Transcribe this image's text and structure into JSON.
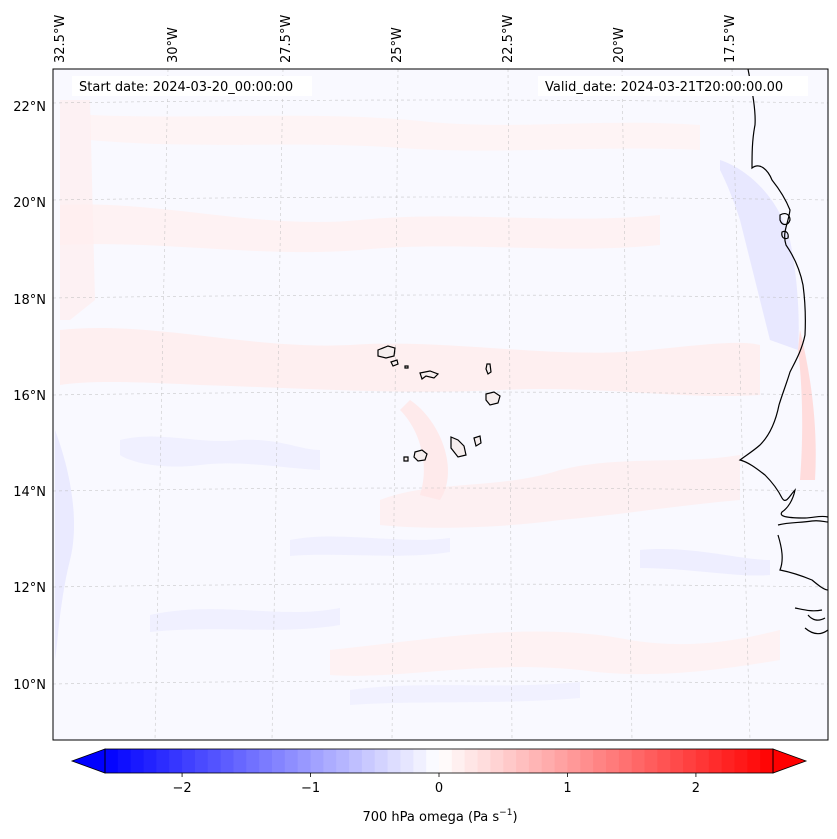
{
  "header": {
    "start_date": "Start date: 2024-03-20_00:00:00",
    "valid_date": "Valid_date: 2024-03-21T20:00:00.00"
  },
  "lon_labels": [
    "32.5°W",
    "30°W",
    "27.5°W",
    "25°W",
    "22.5°W",
    "20°W",
    "17.5°W"
  ],
  "lat_labels": [
    "22°N",
    "20°N",
    "18°N",
    "16°N",
    "14°N",
    "12°N",
    "10°N"
  ],
  "colorbar": {
    "label": "700 hPa omega (Pa s",
    "label_exp": "−1",
    "label_close": ")",
    "ticks": [
      "−2",
      "−1",
      "0",
      "1",
      "2"
    ],
    "vmin": -2.6,
    "vmax": 2.6,
    "low_color": "#0000ff",
    "mid_color": "#ffffff",
    "high_color": "#ff0000"
  },
  "field": {
    "variable": "700 hPa omega",
    "units": "Pa s-1",
    "background_color": "#f8f8ff",
    "palette": "bwr"
  }
}
